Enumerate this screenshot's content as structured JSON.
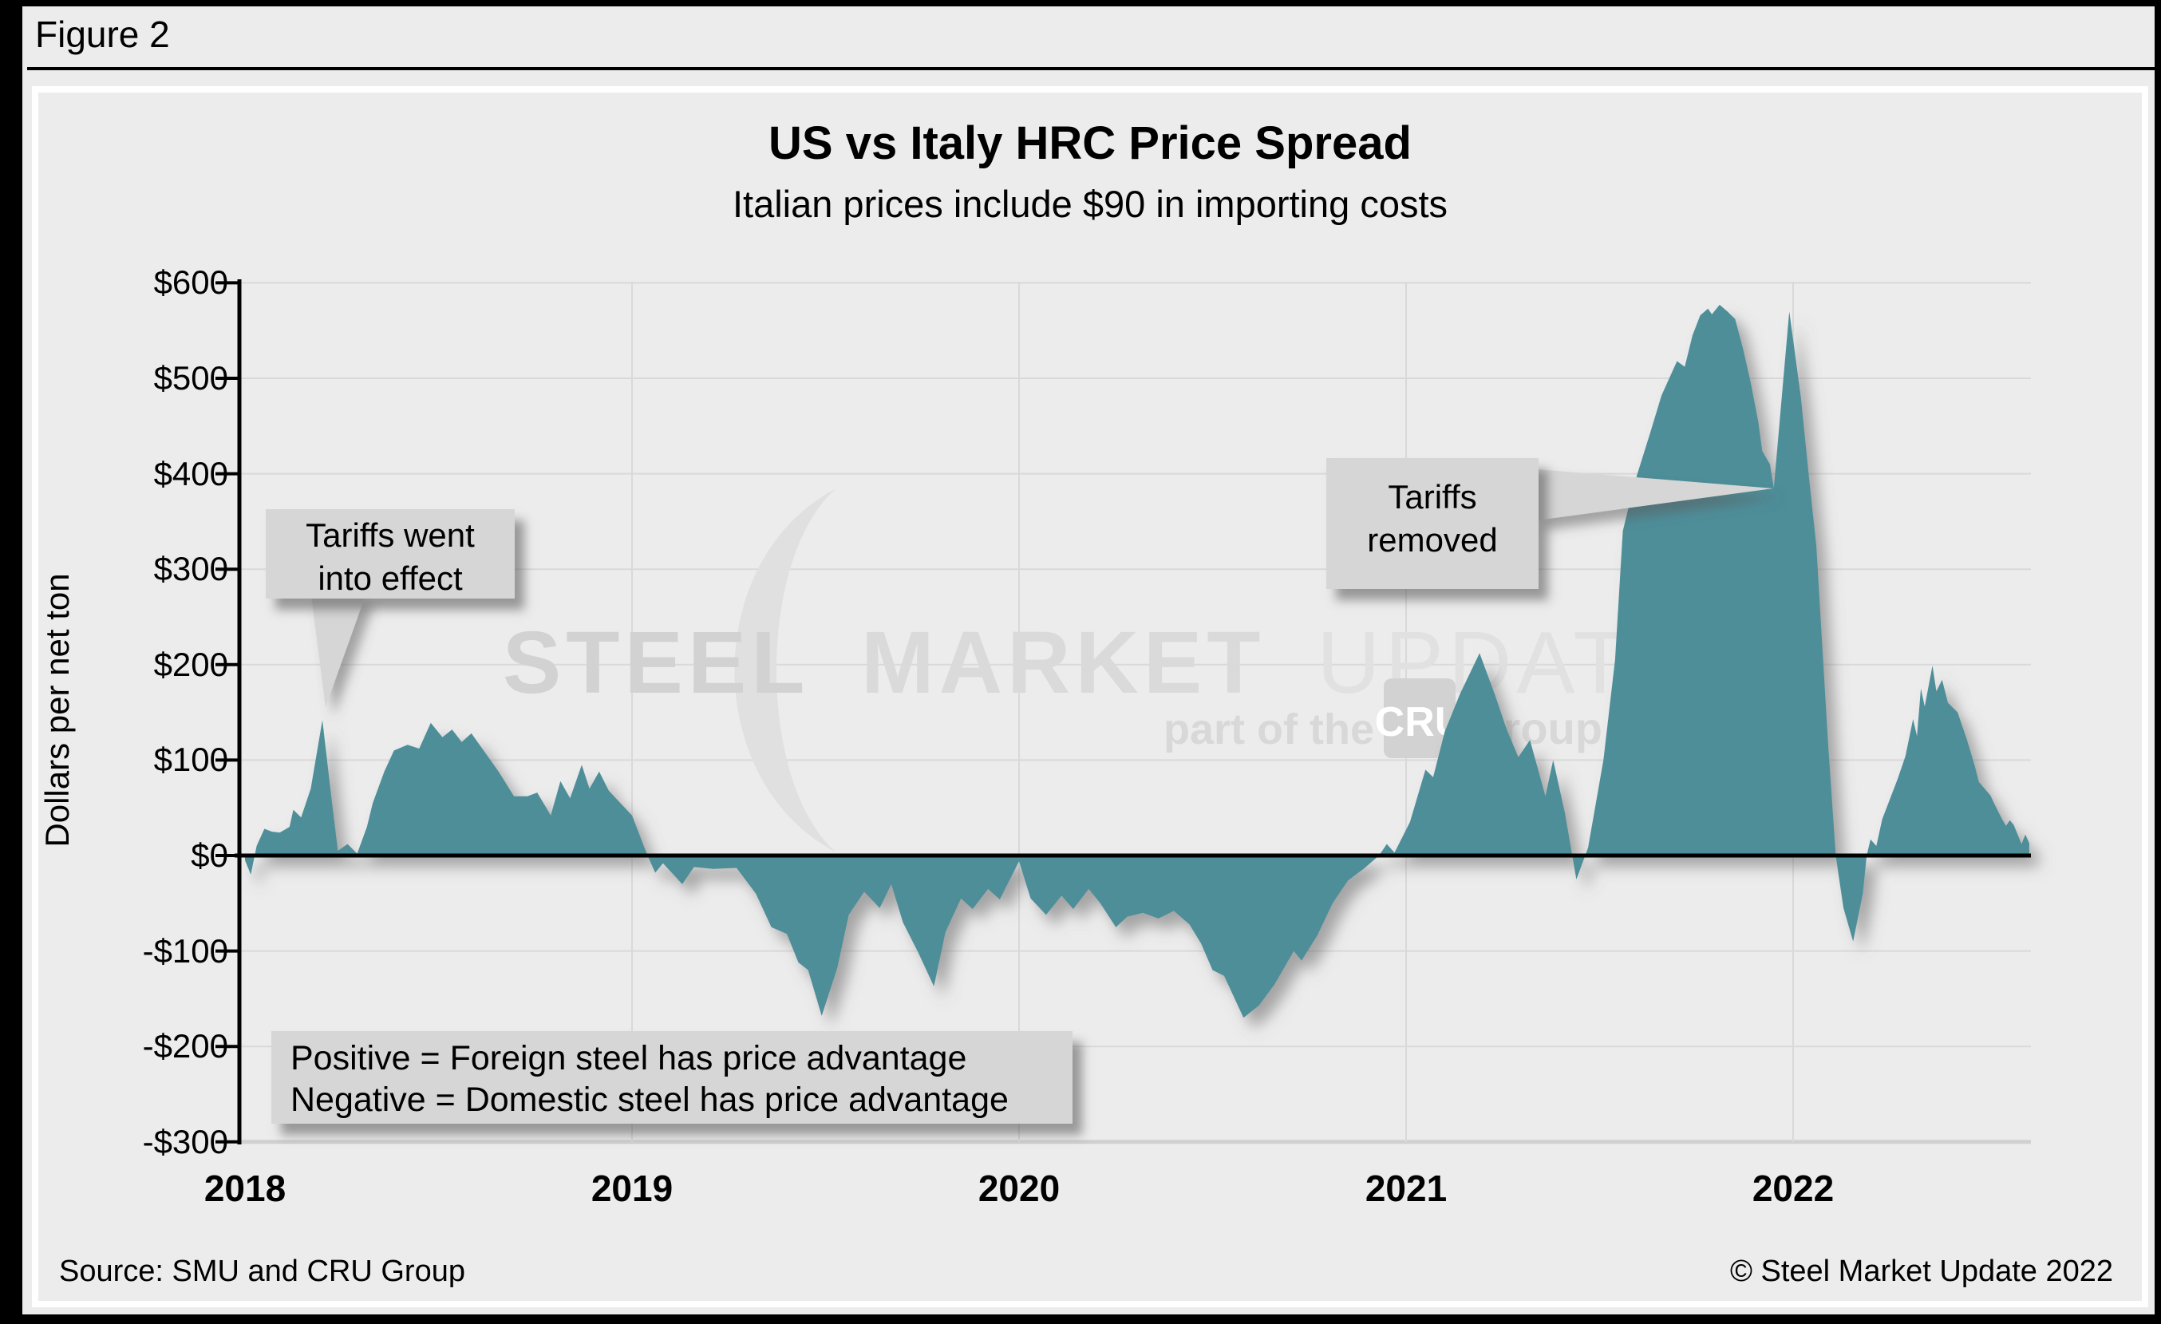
{
  "figure_label": "Figure 2",
  "chart_data": {
    "type": "area",
    "title": "US vs Italy HRC Price Spread",
    "subtitle": "Italian prices include $90 in importing costs",
    "ylabel": "Dollars per net ton",
    "ylim": [
      -300,
      600
    ],
    "ytick_step": 100,
    "grid": true,
    "legend_position": "none",
    "x_unit": "years since 2018 (0 = Jan 2018, weekly spread data through ~Aug 2022)",
    "y_unit": "US dollars per net ton",
    "yticks": [
      {
        "value": 600,
        "label": "$600"
      },
      {
        "value": 500,
        "label": "$500"
      },
      {
        "value": 400,
        "label": "$400"
      },
      {
        "value": 300,
        "label": "$300"
      },
      {
        "value": 200,
        "label": "$200"
      },
      {
        "value": 100,
        "label": "$100"
      },
      {
        "value": 0,
        "label": "$0"
      },
      {
        "value": -100,
        "label": "-$100"
      },
      {
        "value": -200,
        "label": "-$200"
      },
      {
        "value": -300,
        "label": "-$300"
      }
    ],
    "xticks": [
      {
        "year_offset": 0,
        "label": "2018"
      },
      {
        "year_offset": 1,
        "label": "2019"
      },
      {
        "year_offset": 2,
        "label": "2020"
      },
      {
        "year_offset": 3,
        "label": "2021"
      },
      {
        "year_offset": 4,
        "label": "2022"
      }
    ],
    "series": [
      {
        "name": "US minus Italy HRC price spread",
        "color": "#4e8e99",
        "points": [
          [
            0.0,
            -5
          ],
          [
            0.015,
            -20
          ],
          [
            0.03,
            10
          ],
          [
            0.05,
            28
          ],
          [
            0.07,
            25
          ],
          [
            0.09,
            24
          ],
          [
            0.115,
            30
          ],
          [
            0.125,
            48
          ],
          [
            0.145,
            40
          ],
          [
            0.17,
            70
          ],
          [
            0.2,
            142
          ],
          [
            0.225,
            55
          ],
          [
            0.24,
            5
          ],
          [
            0.265,
            12
          ],
          [
            0.29,
            2
          ],
          [
            0.315,
            30
          ],
          [
            0.33,
            55
          ],
          [
            0.36,
            88
          ],
          [
            0.385,
            110
          ],
          [
            0.42,
            116
          ],
          [
            0.45,
            112
          ],
          [
            0.48,
            139
          ],
          [
            0.51,
            124
          ],
          [
            0.535,
            132
          ],
          [
            0.56,
            119
          ],
          [
            0.585,
            128
          ],
          [
            0.62,
            108
          ],
          [
            0.655,
            88
          ],
          [
            0.695,
            62
          ],
          [
            0.73,
            62
          ],
          [
            0.755,
            66
          ],
          [
            0.79,
            42
          ],
          [
            0.815,
            78
          ],
          [
            0.84,
            60
          ],
          [
            0.87,
            95
          ],
          [
            0.89,
            70
          ],
          [
            0.915,
            88
          ],
          [
            0.94,
            68
          ],
          [
            0.965,
            57
          ],
          [
            1.0,
            42
          ],
          [
            1.04,
            0
          ],
          [
            1.06,
            -18
          ],
          [
            1.08,
            -8
          ],
          [
            1.13,
            -30
          ],
          [
            1.16,
            -12
          ],
          [
            1.21,
            -14
          ],
          [
            1.27,
            -13
          ],
          [
            1.32,
            -40
          ],
          [
            1.36,
            -75
          ],
          [
            1.4,
            -82
          ],
          [
            1.43,
            -112
          ],
          [
            1.455,
            -120
          ],
          [
            1.49,
            -168
          ],
          [
            1.53,
            -118
          ],
          [
            1.56,
            -62
          ],
          [
            1.6,
            -38
          ],
          [
            1.64,
            -55
          ],
          [
            1.67,
            -30
          ],
          [
            1.7,
            -70
          ],
          [
            1.74,
            -102
          ],
          [
            1.78,
            -137
          ],
          [
            1.81,
            -80
          ],
          [
            1.85,
            -45
          ],
          [
            1.88,
            -56
          ],
          [
            1.92,
            -35
          ],
          [
            1.95,
            -46
          ],
          [
            2.0,
            -6
          ],
          [
            2.03,
            -45
          ],
          [
            2.07,
            -62
          ],
          [
            2.11,
            -42
          ],
          [
            2.14,
            -56
          ],
          [
            2.18,
            -35
          ],
          [
            2.21,
            -50
          ],
          [
            2.25,
            -75
          ],
          [
            2.28,
            -64
          ],
          [
            2.32,
            -60
          ],
          [
            2.36,
            -66
          ],
          [
            2.4,
            -58
          ],
          [
            2.44,
            -72
          ],
          [
            2.47,
            -92
          ],
          [
            2.5,
            -120
          ],
          [
            2.53,
            -126
          ],
          [
            2.58,
            -170
          ],
          [
            2.62,
            -157
          ],
          [
            2.66,
            -135
          ],
          [
            2.71,
            -100
          ],
          [
            2.73,
            -110
          ],
          [
            2.77,
            -84
          ],
          [
            2.81,
            -50
          ],
          [
            2.85,
            -26
          ],
          [
            2.89,
            -14
          ],
          [
            2.93,
            0
          ],
          [
            2.95,
            12
          ],
          [
            2.97,
            3
          ],
          [
            3.01,
            35
          ],
          [
            3.05,
            90
          ],
          [
            3.07,
            82
          ],
          [
            3.1,
            130
          ],
          [
            3.14,
            170
          ],
          [
            3.19,
            212
          ],
          [
            3.23,
            168
          ],
          [
            3.26,
            132
          ],
          [
            3.29,
            103
          ],
          [
            3.32,
            121
          ],
          [
            3.36,
            62
          ],
          [
            3.38,
            100
          ],
          [
            3.41,
            45
          ],
          [
            3.44,
            -25
          ],
          [
            3.47,
            8
          ],
          [
            3.51,
            100
          ],
          [
            3.54,
            205
          ],
          [
            3.56,
            340
          ],
          [
            3.59,
            390
          ],
          [
            3.63,
            442
          ],
          [
            3.66,
            482
          ],
          [
            3.7,
            518
          ],
          [
            3.72,
            512
          ],
          [
            3.74,
            545
          ],
          [
            3.76,
            566
          ],
          [
            3.78,
            573
          ],
          [
            3.79,
            567
          ],
          [
            3.81,
            577
          ],
          [
            3.83,
            570
          ],
          [
            3.85,
            562
          ],
          [
            3.87,
            532
          ],
          [
            3.89,
            496
          ],
          [
            3.91,
            454
          ],
          [
            3.92,
            424
          ],
          [
            3.94,
            410
          ],
          [
            3.95,
            385
          ],
          [
            3.99,
            570
          ],
          [
            4.02,
            480
          ],
          [
            4.04,
            400
          ],
          [
            4.06,
            324
          ],
          [
            4.09,
            120
          ],
          [
            4.11,
            0
          ],
          [
            4.13,
            -55
          ],
          [
            4.155,
            -90
          ],
          [
            4.18,
            -40
          ],
          [
            4.19,
            0
          ],
          [
            4.2,
            17
          ],
          [
            4.215,
            10
          ],
          [
            4.23,
            38
          ],
          [
            4.27,
            80
          ],
          [
            4.29,
            104
          ],
          [
            4.31,
            143
          ],
          [
            4.32,
            125
          ],
          [
            4.33,
            175
          ],
          [
            4.34,
            156
          ],
          [
            4.36,
            199
          ],
          [
            4.37,
            172
          ],
          [
            4.385,
            184
          ],
          [
            4.4,
            160
          ],
          [
            4.425,
            150
          ],
          [
            4.45,
            120
          ],
          [
            4.47,
            93
          ],
          [
            4.48,
            77
          ],
          [
            4.51,
            63
          ],
          [
            4.52,
            54
          ],
          [
            4.54,
            38
          ],
          [
            4.55,
            31
          ],
          [
            4.56,
            37
          ],
          [
            4.57,
            32
          ],
          [
            4.59,
            12
          ],
          [
            4.6,
            22
          ],
          [
            4.61,
            13
          ]
        ]
      }
    ],
    "annotations": [
      {
        "text": "Tariffs went into effect",
        "points_to": "spike of ~$142 in March 2018"
      },
      {
        "text": "Tariffs removed",
        "points_to": "notch of ~$385 at end of December 2021"
      }
    ]
  },
  "annotations": {
    "tariffs_effect_line1": "Tariffs went",
    "tariffs_effect_line2": "into effect",
    "tariffs_removed_line1": "Tariffs",
    "tariffs_removed_line2": "removed",
    "note_line1": "Positive = Foreign steel has price advantage",
    "note_line2": "Negative = Domestic steel has price advantage"
  },
  "watermark": {
    "word1": "STEEL",
    "word2": "MARKET",
    "word3": "UPDATE",
    "tagline": "part of the",
    "cru": "CRU",
    "group": "Group"
  },
  "footer": {
    "source": "Source: SMU and CRU Group",
    "copyright": "© Steel Market Update 2022"
  },
  "colors": {
    "area": "#4e8e99",
    "background": "#ececec",
    "grid": "#d9d9d9",
    "grid_bottom": "#d0d0d0",
    "axis": "#000000",
    "callout_fill": "#d6d6d6",
    "watermark": "#dcdcdc"
  }
}
